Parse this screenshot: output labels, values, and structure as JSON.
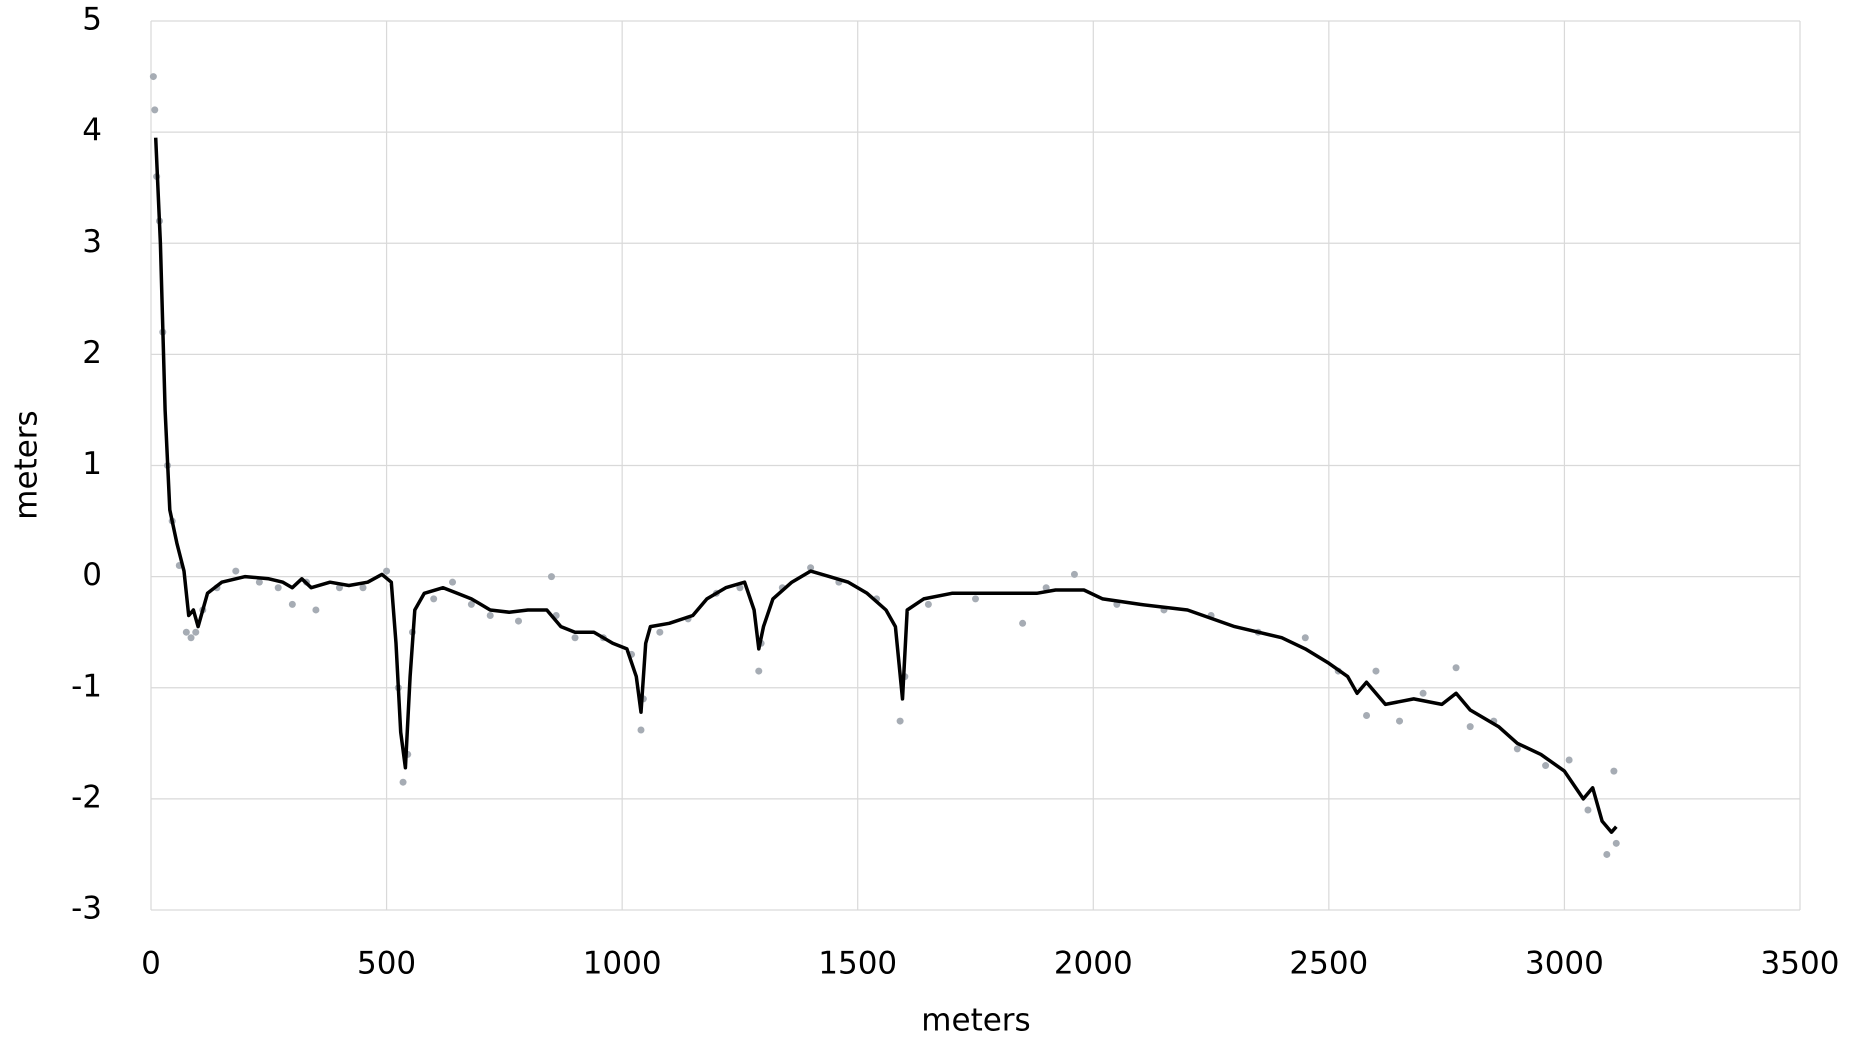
{
  "chart_data": {
    "type": "line",
    "x_label": "meters",
    "y_label": "meters",
    "xlim": [
      0,
      3500
    ],
    "xticks": [
      0,
      500,
      1000,
      1500,
      2000,
      2500,
      3000,
      3500
    ],
    "ylim": [
      -3,
      5
    ],
    "yticks": [
      -3,
      -2,
      -1,
      0,
      1,
      2,
      3,
      4,
      5
    ],
    "grid": true,
    "series": [
      {
        "style": "points",
        "color": "#a6acb4",
        "x": [
          5,
          8,
          12,
          18,
          25,
          35,
          45,
          60,
          75,
          85,
          95,
          110,
          140,
          180,
          230,
          270,
          300,
          330,
          350,
          400,
          450,
          500,
          525,
          535,
          545,
          555,
          600,
          640,
          680,
          720,
          780,
          850,
          860,
          900,
          960,
          1020,
          1040,
          1045,
          1080,
          1140,
          1200,
          1250,
          1290,
          1295,
          1340,
          1400,
          1460,
          1540,
          1590,
          1600,
          1650,
          1750,
          1850,
          1900,
          1960,
          2050,
          2150,
          2250,
          2350,
          2450,
          2520,
          2580,
          2600,
          2650,
          2700,
          2770,
          2800,
          2850,
          2900,
          2960,
          3010,
          3050,
          3090,
          3105,
          3110
        ],
        "values": [
          4.5,
          4.2,
          3.6,
          3.2,
          2.2,
          1.0,
          0.5,
          0.1,
          -0.5,
          -0.55,
          -0.5,
          -0.3,
          -0.1,
          0.05,
          -0.05,
          -0.1,
          -0.25,
          -0.05,
          -0.3,
          -0.1,
          -0.1,
          0.05,
          -1.0,
          -1.85,
          -1.6,
          -0.5,
          -0.2,
          -0.05,
          -0.25,
          -0.35,
          -0.4,
          0.0,
          -0.35,
          -0.55,
          -0.55,
          -0.7,
          -1.38,
          -1.1,
          -0.5,
          -0.38,
          -0.15,
          -0.1,
          -0.85,
          -0.6,
          -0.1,
          0.08,
          -0.05,
          -0.2,
          -1.3,
          -0.9,
          -0.25,
          -0.2,
          -0.42,
          -0.1,
          0.02,
          -0.25,
          -0.3,
          -0.35,
          -0.5,
          -0.55,
          -0.85,
          -1.25,
          -0.85,
          -1.3,
          -1.05,
          -0.82,
          -1.35,
          -1.3,
          -1.55,
          -1.7,
          -1.65,
          -2.1,
          -2.5,
          -1.75,
          -2.4
        ]
      },
      {
        "style": "line",
        "color": "#000000",
        "x": [
          10,
          20,
          30,
          40,
          55,
          70,
          80,
          90,
          100,
          120,
          150,
          200,
          250,
          280,
          300,
          320,
          340,
          380,
          420,
          460,
          490,
          510,
          520,
          530,
          540,
          550,
          560,
          580,
          620,
          650,
          680,
          700,
          720,
          760,
          800,
          840,
          870,
          900,
          940,
          980,
          1010,
          1030,
          1040,
          1050,
          1060,
          1100,
          1150,
          1180,
          1220,
          1260,
          1280,
          1290,
          1300,
          1320,
          1360,
          1400,
          1440,
          1480,
          1520,
          1560,
          1580,
          1595,
          1605,
          1640,
          1700,
          1800,
          1880,
          1920,
          1980,
          2020,
          2100,
          2200,
          2300,
          2400,
          2450,
          2500,
          2540,
          2560,
          2580,
          2620,
          2680,
          2740,
          2770,
          2800,
          2860,
          2900,
          2950,
          3000,
          3040,
          3060,
          3080,
          3100,
          3110
        ],
        "values": [
          3.95,
          3.0,
          1.5,
          0.6,
          0.3,
          0.05,
          -0.35,
          -0.3,
          -0.45,
          -0.15,
          -0.05,
          0.0,
          -0.02,
          -0.05,
          -0.1,
          -0.02,
          -0.1,
          -0.05,
          -0.08,
          -0.05,
          0.02,
          -0.05,
          -0.6,
          -1.4,
          -1.72,
          -0.9,
          -0.3,
          -0.15,
          -0.1,
          -0.15,
          -0.2,
          -0.25,
          -0.3,
          -0.32,
          -0.3,
          -0.3,
          -0.45,
          -0.5,
          -0.5,
          -0.6,
          -0.65,
          -0.9,
          -1.22,
          -0.6,
          -0.45,
          -0.42,
          -0.35,
          -0.2,
          -0.1,
          -0.05,
          -0.3,
          -0.65,
          -0.45,
          -0.2,
          -0.05,
          0.05,
          0.0,
          -0.05,
          -0.15,
          -0.3,
          -0.45,
          -1.1,
          -0.3,
          -0.2,
          -0.15,
          -0.15,
          -0.15,
          -0.12,
          -0.12,
          -0.2,
          -0.25,
          -0.3,
          -0.45,
          -0.55,
          -0.65,
          -0.78,
          -0.9,
          -1.05,
          -0.95,
          -1.15,
          -1.1,
          -1.15,
          -1.05,
          -1.2,
          -1.35,
          -1.5,
          -1.6,
          -1.75,
          -2.0,
          -1.9,
          -2.2,
          -2.3,
          -2.25
        ]
      }
    ]
  }
}
